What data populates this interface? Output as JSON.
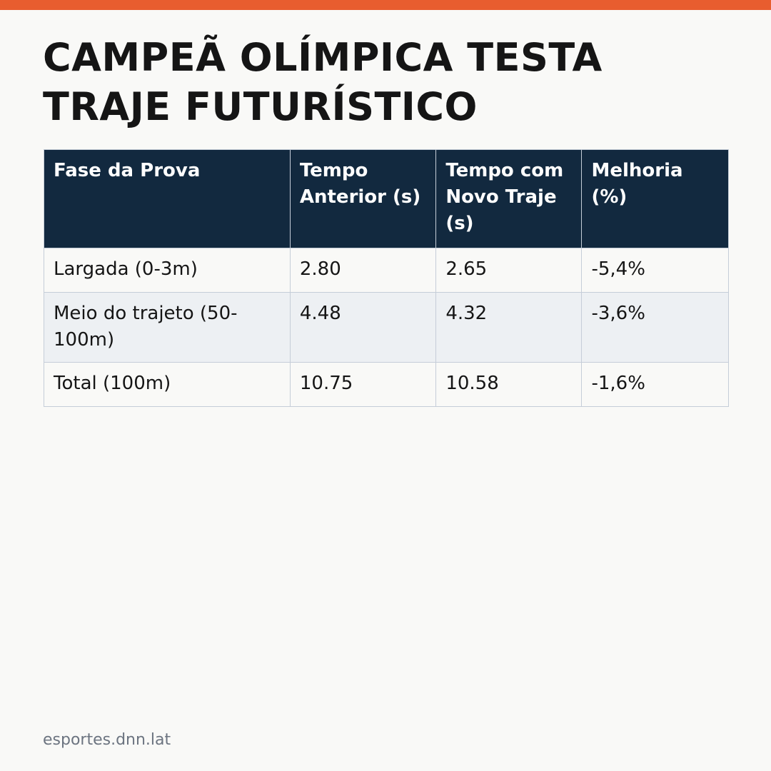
{
  "header": {
    "title": "CAMPEÃ OLÍMPICA TESTA TRAJE FUTURÍSTICO"
  },
  "table": {
    "columns": [
      "Fase da Prova",
      "Tempo Anterior (s)",
      "Tempo com Novo Traje (s)",
      "Melhoria (%)"
    ],
    "rows": [
      [
        "Largada (0-3m)",
        "2.80",
        "2.65",
        "-5,4%"
      ],
      [
        "Meio do trajeto (50-100m)",
        "4.48",
        "4.32",
        "-3,6%"
      ],
      [
        "Total (100m)",
        "10.75",
        "10.58",
        "-1,6%"
      ]
    ]
  },
  "footer": {
    "source": "esportes.dnn.lat"
  }
}
